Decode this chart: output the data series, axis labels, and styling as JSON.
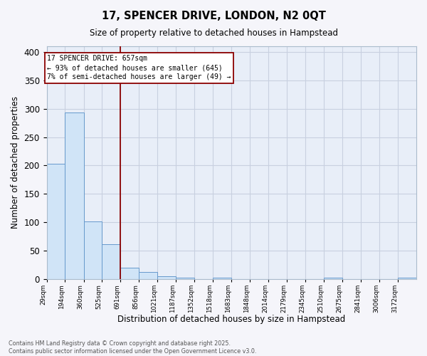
{
  "title": "17, SPENCER DRIVE, LONDON, N2 0QT",
  "subtitle": "Size of property relative to detached houses in Hampstead",
  "xlabel": "Distribution of detached houses by size in Hampstead",
  "ylabel": "Number of detached properties",
  "bar_color": "#d0e4f7",
  "bar_edge_color": "#6699cc",
  "background_color": "#e8eef8",
  "grid_color": "#c8d0e0",
  "bins": [
    29,
    194,
    360,
    525,
    691,
    856,
    1021,
    1187,
    1352,
    1518,
    1683,
    1848,
    2014,
    2179,
    2345,
    2510,
    2675,
    2841,
    3006,
    3172,
    3337
  ],
  "counts": [
    203,
    293,
    101,
    61,
    20,
    13,
    5,
    3,
    0,
    2,
    0,
    0,
    0,
    0,
    0,
    3,
    0,
    0,
    0,
    3
  ],
  "ylim": [
    0,
    410
  ],
  "yticks": [
    0,
    50,
    100,
    150,
    200,
    250,
    300,
    350,
    400
  ],
  "red_line_x": 691,
  "annotation_lines": [
    "17 SPENCER DRIVE: 657sqm",
    "← 93% of detached houses are smaller (645)",
    "7% of semi-detached houses are larger (49) →"
  ],
  "footer_line1": "Contains HM Land Registry data © Crown copyright and database right 2025.",
  "footer_line2": "Contains public sector information licensed under the Open Government Licence v3.0.",
  "fig_bg_color": "#f5f5fa"
}
